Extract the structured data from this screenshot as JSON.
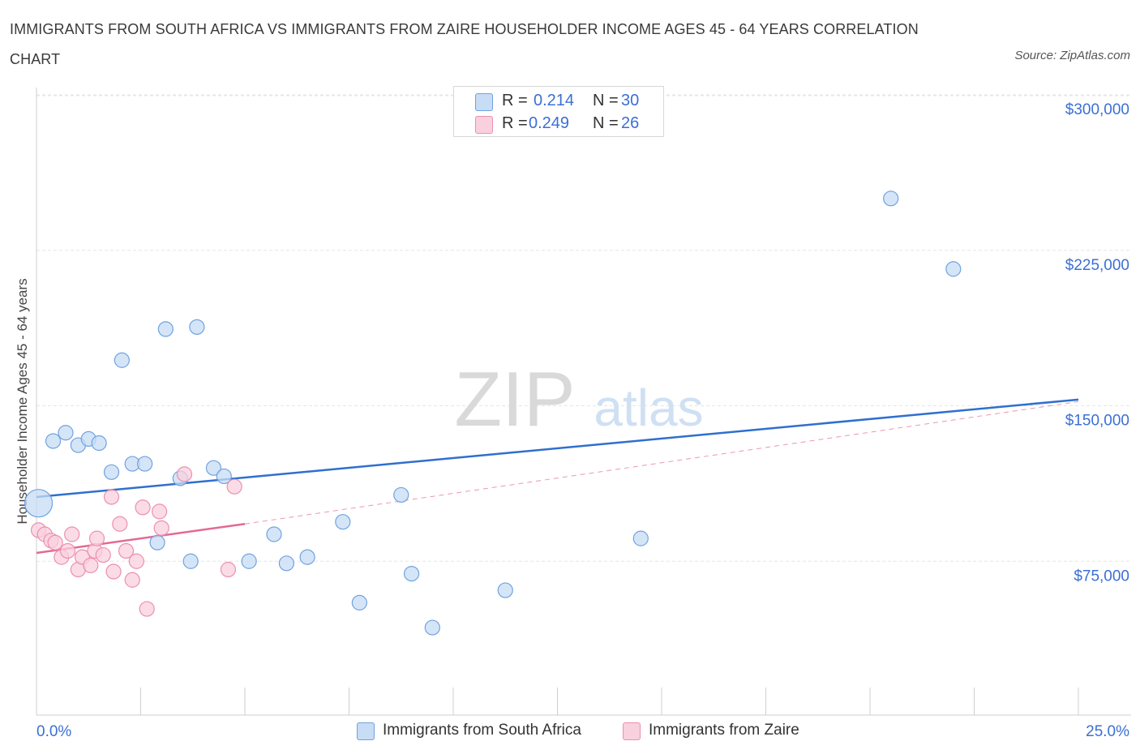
{
  "chart_data": {
    "type": "scatter",
    "title": "IMMIGRANTS FROM SOUTH AFRICA VS IMMIGRANTS FROM ZAIRE HOUSEHOLDER INCOME AGES 45 - 64 YEARS CORRELATION CHART",
    "source": "Source: ZipAtlas.com",
    "ylabel": "Householder Income Ages 45 - 64 years",
    "xlabel": "",
    "xlim": [
      0,
      25
    ],
    "ylim": [
      0,
      300000
    ],
    "x_tick_labels": [
      {
        "value": 0,
        "label": "0.0%"
      },
      {
        "value": 25,
        "label": "25.0%"
      }
    ],
    "y_ticks": [
      {
        "value": 75000,
        "label": "$75,000"
      },
      {
        "value": 150000,
        "label": "$150,000"
      },
      {
        "value": 225000,
        "label": "$225,000"
      },
      {
        "value": 300000,
        "label": "$300,000"
      }
    ],
    "watermark": {
      "part1": "ZIP",
      "part2": "atlas"
    },
    "legend": [
      {
        "r_label": "R =",
        "r_value": "0.214",
        "n_label": "N =",
        "n_value": "30"
      },
      {
        "r_label": "R =",
        "r_value": "0.249",
        "n_label": "N =",
        "n_value": "26"
      }
    ],
    "series": [
      {
        "name": "Immigrants from South Africa",
        "color": "#6fa2e0",
        "fill": "#c7dcf5",
        "line_color": "#2f6fcf",
        "trend": {
          "x0": 0,
          "y0": 106000,
          "x1": 25,
          "y1": 153000
        },
        "points": [
          {
            "x": 0.05,
            "y": 103000,
            "big": true
          },
          {
            "x": 0.4,
            "y": 133000
          },
          {
            "x": 0.7,
            "y": 137000
          },
          {
            "x": 1.0,
            "y": 131000
          },
          {
            "x": 1.25,
            "y": 134000
          },
          {
            "x": 1.5,
            "y": 132000
          },
          {
            "x": 1.8,
            "y": 118000
          },
          {
            "x": 2.05,
            "y": 172000
          },
          {
            "x": 2.3,
            "y": 122000
          },
          {
            "x": 2.6,
            "y": 122000
          },
          {
            "x": 2.9,
            "y": 84000
          },
          {
            "x": 3.1,
            "y": 187000
          },
          {
            "x": 3.45,
            "y": 115000
          },
          {
            "x": 3.7,
            "y": 75000
          },
          {
            "x": 3.85,
            "y": 188000
          },
          {
            "x": 4.25,
            "y": 120000
          },
          {
            "x": 4.5,
            "y": 116000
          },
          {
            "x": 5.1,
            "y": 75000
          },
          {
            "x": 5.7,
            "y": 88000
          },
          {
            "x": 6.0,
            "y": 74000
          },
          {
            "x": 6.5,
            "y": 77000
          },
          {
            "x": 7.35,
            "y": 94000
          },
          {
            "x": 7.75,
            "y": 55000
          },
          {
            "x": 8.75,
            "y": 107000
          },
          {
            "x": 9.0,
            "y": 69000
          },
          {
            "x": 9.5,
            "y": 43000
          },
          {
            "x": 11.25,
            "y": 61000
          },
          {
            "x": 14.5,
            "y": 86000
          },
          {
            "x": 20.5,
            "y": 250000
          },
          {
            "x": 22.0,
            "y": 216000
          }
        ]
      },
      {
        "name": "Immigrants from Zaire",
        "color": "#ec8fae",
        "fill": "#f9d0de",
        "line_color": "#e36a93",
        "trend": {
          "x0": 0,
          "y0": 79000,
          "x1": 5.0,
          "y1": 93000
        },
        "trend_ext": {
          "x0": 5.0,
          "y0": 93000,
          "x1": 25,
          "y1": 152000
        },
        "points": [
          {
            "x": 0.05,
            "y": 90000
          },
          {
            "x": 0.2,
            "y": 88000
          },
          {
            "x": 0.35,
            "y": 85000
          },
          {
            "x": 0.45,
            "y": 84000
          },
          {
            "x": 0.6,
            "y": 77000
          },
          {
            "x": 0.75,
            "y": 80000
          },
          {
            "x": 0.85,
            "y": 88000
          },
          {
            "x": 1.0,
            "y": 71000
          },
          {
            "x": 1.1,
            "y": 77000
          },
          {
            "x": 1.3,
            "y": 73000
          },
          {
            "x": 1.4,
            "y": 80000
          },
          {
            "x": 1.45,
            "y": 86000
          },
          {
            "x": 1.6,
            "y": 78000
          },
          {
            "x": 1.8,
            "y": 106000
          },
          {
            "x": 1.85,
            "y": 70000
          },
          {
            "x": 2.0,
            "y": 93000
          },
          {
            "x": 2.15,
            "y": 80000
          },
          {
            "x": 2.3,
            "y": 66000
          },
          {
            "x": 2.4,
            "y": 75000
          },
          {
            "x": 2.55,
            "y": 101000
          },
          {
            "x": 2.65,
            "y": 52000
          },
          {
            "x": 2.95,
            "y": 99000
          },
          {
            "x": 3.0,
            "y": 91000
          },
          {
            "x": 3.55,
            "y": 117000
          },
          {
            "x": 4.6,
            "y": 71000
          },
          {
            "x": 4.75,
            "y": 111000
          }
        ]
      }
    ]
  }
}
